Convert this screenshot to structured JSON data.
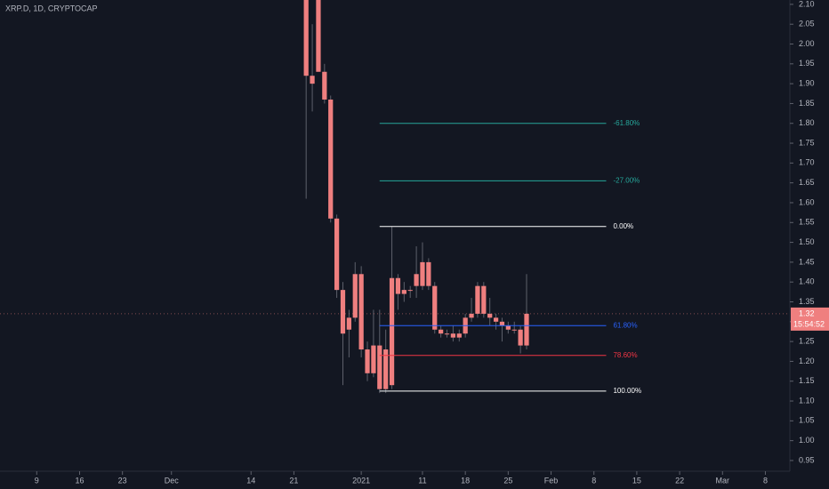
{
  "chart_data": {
    "type": "candlestick",
    "title": "XRP.D, 1D, CRYPTOCAP",
    "color": "#ef7f7f",
    "x": [
      "Dec 23",
      "Dec 24",
      "Dec 25",
      "Dec 26",
      "Dec 27",
      "Dec 28",
      "Dec 29",
      "Dec 30",
      "Dec 31",
      "Jan 1",
      "Jan 2",
      "Jan 3",
      "Jan 4",
      "Jan 5",
      "Jan 6",
      "Jan 7",
      "Jan 8",
      "Jan 9",
      "Jan 10",
      "Jan 11",
      "Jan 12",
      "Jan 13",
      "Jan 14",
      "Jan 15",
      "Jan 16",
      "Jan 17",
      "Jan 18",
      "Jan 19",
      "Jan 20",
      "Jan 21",
      "Jan 22",
      "Jan 23",
      "Jan 24",
      "Jan 25",
      "Jan 26",
      "Jan 27",
      "Jan 28"
    ],
    "open": [
      2.25,
      1.92,
      2.2,
      1.93,
      1.86,
      1.56,
      1.38,
      1.28,
      1.31,
      1.42,
      1.23,
      1.17,
      1.24,
      1.13,
      1.14,
      1.41,
      1.37,
      1.38,
      1.39,
      1.45,
      1.39,
      1.39,
      1.28,
      1.27,
      1.27,
      1.26,
      1.27,
      1.31,
      1.32,
      1.39,
      1.32,
      1.31,
      1.3,
      1.29,
      1.28,
      1.28,
      1.24
    ],
    "high": [
      2.3,
      2.05,
      2.3,
      1.95,
      1.87,
      1.57,
      1.4,
      1.33,
      1.45,
      1.44,
      1.25,
      1.33,
      1.33,
      1.28,
      1.54,
      1.42,
      1.4,
      1.39,
      1.49,
      1.5,
      1.46,
      1.4,
      1.29,
      1.28,
      1.29,
      1.28,
      1.32,
      1.36,
      1.4,
      1.4,
      1.36,
      1.32,
      1.31,
      1.3,
      1.3,
      1.29,
      1.42
    ],
    "low": [
      1.61,
      1.83,
      1.93,
      1.85,
      1.55,
      1.36,
      1.14,
      1.21,
      1.3,
      1.21,
      1.15,
      1.16,
      1.12,
      1.12,
      1.13,
      1.33,
      1.35,
      1.36,
      1.36,
      1.38,
      1.38,
      1.27,
      1.26,
      1.26,
      1.25,
      1.25,
      1.26,
      1.3,
      1.31,
      1.31,
      1.29,
      1.28,
      1.25,
      1.27,
      1.27,
      1.22,
      1.23
    ],
    "close": [
      1.92,
      1.9,
      1.93,
      1.86,
      1.56,
      1.38,
      1.27,
      1.31,
      1.42,
      1.23,
      1.17,
      1.24,
      1.13,
      1.23,
      1.41,
      1.37,
      1.38,
      1.38,
      1.42,
      1.39,
      1.45,
      1.28,
      1.27,
      1.27,
      1.26,
      1.27,
      1.31,
      1.32,
      1.39,
      1.32,
      1.31,
      1.3,
      1.29,
      1.28,
      1.28,
      1.24,
      1.32
    ],
    "xlim": [
      "Nov 3",
      "Mar 12"
    ],
    "xticks": [
      {
        "value": "Nov 9",
        "label": "9"
      },
      {
        "value": "Nov 16",
        "label": "16"
      },
      {
        "value": "Nov 23",
        "label": "23"
      },
      {
        "value": "Dec 1",
        "label": "Dec"
      },
      {
        "value": "Dec 14",
        "label": "14"
      },
      {
        "value": "Dec 21",
        "label": "21"
      },
      {
        "value": "Jan 1",
        "label": "2021"
      },
      {
        "value": "Jan 11",
        "label": "11"
      },
      {
        "value": "Jan 18",
        "label": "18"
      },
      {
        "value": "Jan 25",
        "label": "25"
      },
      {
        "value": "Feb 1",
        "label": "Feb"
      },
      {
        "value": "Feb 8",
        "label": "8"
      },
      {
        "value": "Feb 15",
        "label": "15"
      },
      {
        "value": "Feb 22",
        "label": "22"
      },
      {
        "value": "Mar 1",
        "label": "Mar"
      },
      {
        "value": "Mar 8",
        "label": "8"
      }
    ],
    "ylim": [
      0.923,
      2.111
    ],
    "yticks": [
      0.95,
      {
        "value": 1.0,
        "label": "1.00"
      },
      1.05,
      {
        "value": 1.1,
        "label": "1.10"
      },
      1.15,
      {
        "value": 1.2,
        "label": "1.20"
      },
      1.25,
      {
        "value": 1.3,
        "label": "1.30"
      },
      1.35,
      {
        "value": 1.4,
        "label": "1.40"
      },
      1.45,
      {
        "value": 1.5,
        "label": "1.50"
      },
      1.55,
      {
        "value": 1.6,
        "label": "1.60"
      },
      1.65,
      {
        "value": 1.7,
        "label": "1.70"
      },
      1.75,
      {
        "value": 1.8,
        "label": "1.80"
      },
      1.85,
      {
        "value": 1.9,
        "label": "1.90"
      },
      1.95,
      {
        "value": 2.0,
        "label": "2.00"
      },
      2.05,
      {
        "value": 2.1,
        "label": "2.10"
      }
    ],
    "fib_range": [
      "Jan 4",
      "Feb 10"
    ],
    "levels": [
      {
        "label": "-61.80%",
        "value": 1.8,
        "color": "#26a69a"
      },
      {
        "label": "-27.00%",
        "value": 1.655,
        "color": "#26a69a"
      },
      {
        "label": "0.00%",
        "value": 1.54,
        "color": "#ffffff"
      },
      {
        "label": "61.80%",
        "value": 1.29,
        "color": "#2962ff"
      },
      {
        "label": "78.60%",
        "value": 1.215,
        "color": "#f23645"
      },
      {
        "label": "100.00%",
        "value": 1.125,
        "color": "#ffffff"
      }
    ],
    "last_price": {
      "value": 1.32,
      "label": "1.32"
    },
    "countdown": "15:54:52"
  }
}
